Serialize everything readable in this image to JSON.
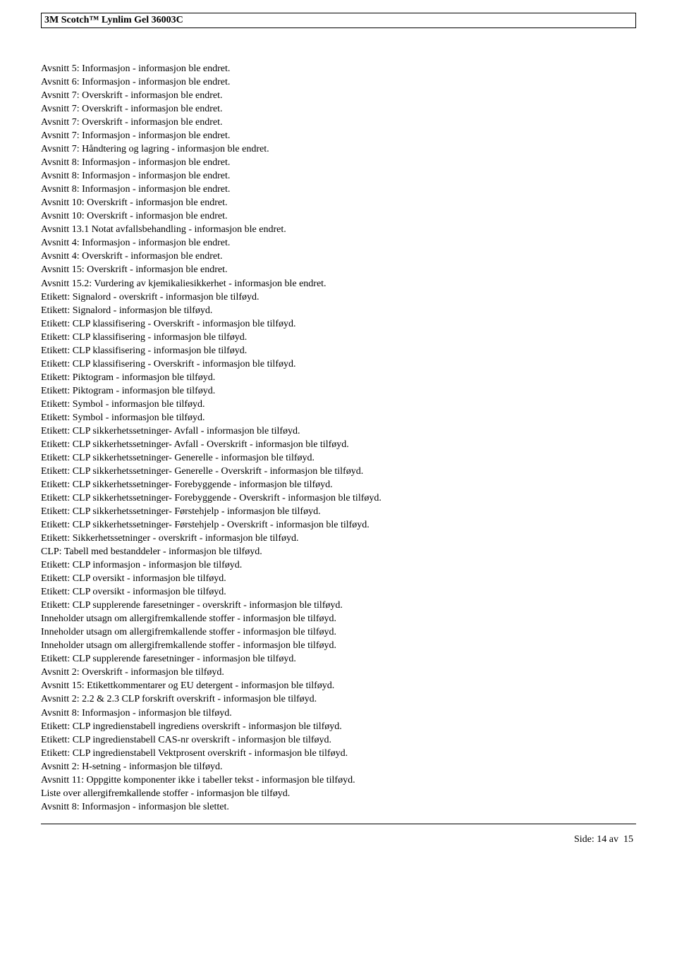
{
  "header": {
    "title": "3M Scotch™ Lynlim Gel 36003C"
  },
  "lines": [
    "Avsnitt 5: Informasjon - informasjon ble endret.",
    "Avsnitt 6: Informasjon - informasjon ble endret.",
    "Avsnitt 7: Overskrift - informasjon ble endret.",
    "Avsnitt 7: Overskrift - informasjon ble endret.",
    "Avsnitt 7: Overskrift - informasjon ble endret.",
    "Avsnitt 7: Informasjon - informasjon ble endret.",
    "Avsnitt 7: Håndtering og lagring - informasjon ble endret.",
    "Avsnitt 8: Informasjon - informasjon ble endret.",
    "Avsnitt 8: Informasjon - informasjon ble endret.",
    "Avsnitt 8: Informasjon - informasjon ble endret.",
    "Avsnitt 10: Overskrift - informasjon ble endret.",
    "Avsnitt 10: Overskrift - informasjon ble endret.",
    "Avsnitt 13.1 Notat avfallsbehandling - informasjon ble endret.",
    "Avsnitt 4: Informasjon - informasjon ble endret.",
    "Avsnitt 4: Overskrift - informasjon ble endret.",
    "Avsnitt 15: Overskrift - informasjon ble endret.",
    "Avsnitt 15.2: Vurdering av kjemikaliesikkerhet - informasjon ble endret.",
    "Etikett: Signalord - overskrift - informasjon ble tilføyd.",
    "Etikett: Signalord - informasjon ble tilføyd.",
    "Etikett: CLP klassifisering - Overskrift - informasjon ble tilføyd.",
    "Etikett: CLP klassifisering - informasjon ble tilføyd.",
    "Etikett: CLP klassifisering - informasjon ble tilføyd.",
    "Etikett: CLP klassifisering - Overskrift - informasjon ble tilføyd.",
    "Etikett: Piktogram - informasjon ble tilføyd.",
    "Etikett: Piktogram - informasjon ble tilføyd.",
    "Etikett: Symbol - informasjon ble tilføyd.",
    "Etikett: Symbol - informasjon ble tilføyd.",
    "Etikett: CLP sikkerhetssetninger- Avfall - informasjon ble tilføyd.",
    "Etikett: CLP sikkerhetssetninger- Avfall - Overskrift - informasjon ble tilføyd.",
    "Etikett: CLP sikkerhetssetninger- Generelle - informasjon ble tilføyd.",
    "Etikett: CLP sikkerhetssetninger- Generelle - Overskrift - informasjon ble tilføyd.",
    "Etikett: CLP sikkerhetssetninger- Forebyggende - informasjon ble tilføyd.",
    "Etikett: CLP sikkerhetssetninger- Forebyggende - Overskrift - informasjon ble tilføyd.",
    "Etikett: CLP sikkerhetssetninger- Førstehjelp - informasjon ble tilføyd.",
    "Etikett: CLP sikkerhetssetninger- Førstehjelp - Overskrift - informasjon ble tilføyd.",
    "Etikett: Sikkerhetssetninger - overskrift - informasjon ble tilføyd.",
    "CLP: Tabell med bestanddeler - informasjon ble tilføyd.",
    "Etikett: CLP informasjon - informasjon ble tilføyd.",
    "Etikett: CLP oversikt - informasjon ble tilføyd.",
    "Etikett: CLP oversikt - informasjon ble tilføyd.",
    "Etikett: CLP supplerende faresetninger - overskrift - informasjon ble tilføyd.",
    "Inneholder utsagn om allergifremkallende stoffer - informasjon ble tilføyd.",
    "Inneholder utsagn om allergifremkallende stoffer - informasjon ble tilføyd.",
    "Inneholder utsagn om allergifremkallende stoffer - informasjon ble tilføyd.",
    "Etikett: CLP supplerende faresetninger - informasjon ble tilføyd.",
    "Avsnitt 2: Overskrift - informasjon ble tilføyd.",
    "Avsnitt 15: Etikettkommentarer og EU detergent - informasjon ble tilføyd.",
    "Avsnitt 2: 2.2 & 2.3 CLP forskrift overskrift - informasjon ble tilføyd.",
    "Avsnitt 8: Informasjon - informasjon ble tilføyd.",
    "Etikett: CLP ingredienstabell ingrediens overskrift - informasjon ble tilføyd.",
    "Etikett: CLP ingredienstabell CAS-nr overskrift - informasjon ble tilføyd.",
    "Etikett: CLP ingredienstabell Vektprosent overskrift - informasjon ble tilføyd.",
    "Avsnitt 2: H-setning - informasjon ble tilføyd.",
    "Avsnitt 11: Oppgitte komponenter ikke i tabeller tekst - informasjon ble tilføyd.",
    "Liste over allergifremkallende stoffer - informasjon ble tilføyd.",
    "Avsnitt 8: Informasjon - informasjon ble slettet."
  ],
  "footer": {
    "label": "Side:",
    "page": "14",
    "sep": "av",
    "total": "15"
  }
}
